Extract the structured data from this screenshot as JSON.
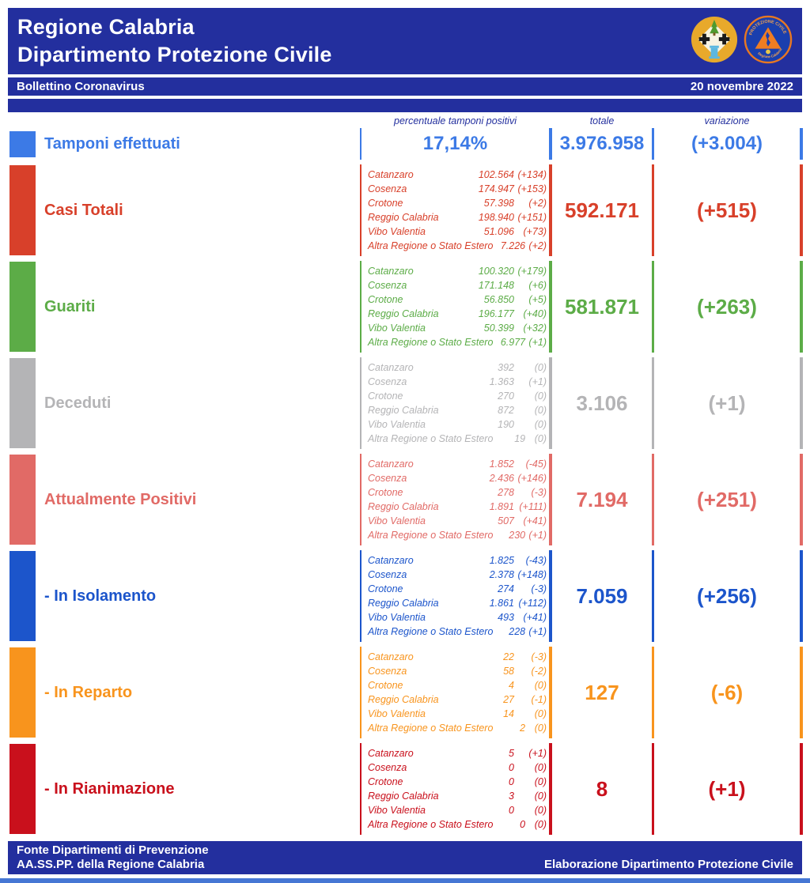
{
  "header": {
    "title_line1": "Regione Calabria",
    "title_line2": "Dipartimento Protezione Civile",
    "bulletin_label": "Bollettino Coronavirus",
    "date": "20 novembre 2022",
    "logos": [
      "regione-calabria-coat-of-arms",
      "protezione-civile-emblem"
    ]
  },
  "theme": {
    "header_bg": "#232f9e",
    "bottom_strip": "#4677d4"
  },
  "columns": {
    "percent_label": "percentuale tamponi positivi",
    "total_label": "totale",
    "variation_label": "variazione"
  },
  "tamponi": {
    "label": "Tamponi effettuati",
    "percent": "17,14%",
    "total": "3.976.958",
    "variation": "(+3.004)",
    "color": "#3c7ae6"
  },
  "sections": [
    {
      "label": "Casi Totali",
      "color": "#d8402a",
      "total": "592.171",
      "variation": "(+515)",
      "rows": [
        {
          "name": "Catanzaro",
          "value": "102.564",
          "delta": "(+134)"
        },
        {
          "name": "Cosenza",
          "value": "174.947",
          "delta": "(+153)"
        },
        {
          "name": "Crotone",
          "value": "57.398",
          "delta": "(+2)"
        },
        {
          "name": "Reggio Calabria",
          "value": "198.940",
          "delta": "(+151)"
        },
        {
          "name": "Vibo Valentia",
          "value": "51.096",
          "delta": "(+73)"
        },
        {
          "name": "Altra Regione o Stato Estero",
          "value": "7.226",
          "delta": "(+2)"
        }
      ]
    },
    {
      "label": "Guariti",
      "color": "#5cac47",
      "total": "581.871",
      "variation": "(+263)",
      "rows": [
        {
          "name": "Catanzaro",
          "value": "100.320",
          "delta": "(+179)"
        },
        {
          "name": "Cosenza",
          "value": "171.148",
          "delta": "(+6)"
        },
        {
          "name": "Crotone",
          "value": "56.850",
          "delta": "(+5)"
        },
        {
          "name": "Reggio Calabria",
          "value": "196.177",
          "delta": "(+40)"
        },
        {
          "name": "Vibo Valentia",
          "value": "50.399",
          "delta": "(+32)"
        },
        {
          "name": "Altra Regione o Stato Estero",
          "value": "6.977",
          "delta": "(+1)"
        }
      ]
    },
    {
      "label": "Deceduti",
      "color": "#b4b4b6",
      "total": "3.106",
      "variation": "(+1)",
      "rows": [
        {
          "name": "Catanzaro",
          "value": "392",
          "delta": "(0)"
        },
        {
          "name": "Cosenza",
          "value": "1.363",
          "delta": "(+1)"
        },
        {
          "name": "Crotone",
          "value": "270",
          "delta": "(0)"
        },
        {
          "name": "Reggio Calabria",
          "value": "872",
          "delta": "(0)"
        },
        {
          "name": "Vibo Valentia",
          "value": "190",
          "delta": "(0)"
        },
        {
          "name": "Altra Regione o Stato Estero",
          "value": "19",
          "delta": "(0)"
        }
      ]
    },
    {
      "label": "Attualmente Positivi",
      "color": "#e16a66",
      "total": "7.194",
      "variation": "(+251)",
      "rows": [
        {
          "name": "Catanzaro",
          "value": "1.852",
          "delta": "(-45)"
        },
        {
          "name": "Cosenza",
          "value": "2.436",
          "delta": "(+146)"
        },
        {
          "name": "Crotone",
          "value": "278",
          "delta": "(-3)"
        },
        {
          "name": "Reggio Calabria",
          "value": "1.891",
          "delta": "(+111)"
        },
        {
          "name": "Vibo Valentia",
          "value": "507",
          "delta": "(+41)"
        },
        {
          "name": "Altra Regione o Stato Estero",
          "value": "230",
          "delta": "(+1)"
        }
      ]
    },
    {
      "label": "- In Isolamento",
      "color": "#1c55cb",
      "total": "7.059",
      "variation": "(+256)",
      "rows": [
        {
          "name": "Catanzaro",
          "value": "1.825",
          "delta": "(-43)"
        },
        {
          "name": "Cosenza",
          "value": "2.378",
          "delta": "(+148)"
        },
        {
          "name": "Crotone",
          "value": "274",
          "delta": "(-3)"
        },
        {
          "name": "Reggio Calabria",
          "value": "1.861",
          "delta": "(+112)"
        },
        {
          "name": "Vibo Valentia",
          "value": "493",
          "delta": "(+41)"
        },
        {
          "name": "Altra Regione o Stato Estero",
          "value": "228",
          "delta": "(+1)"
        }
      ]
    },
    {
      "label": "- In Reparto",
      "color": "#f8941d",
      "total": "127",
      "variation": "(-6)",
      "rows": [
        {
          "name": "Catanzaro",
          "value": "22",
          "delta": "(-3)"
        },
        {
          "name": "Cosenza",
          "value": "58",
          "delta": "(-2)"
        },
        {
          "name": "Crotone",
          "value": "4",
          "delta": "(0)"
        },
        {
          "name": "Reggio Calabria",
          "value": "27",
          "delta": "(-1)"
        },
        {
          "name": "Vibo Valentia",
          "value": "14",
          "delta": "(0)"
        },
        {
          "name": "Altra Regione o Stato Estero",
          "value": "2",
          "delta": "(0)"
        }
      ]
    },
    {
      "label": "- In Rianimazione",
      "color": "#c9101c",
      "total": "8",
      "variation": "(+1)",
      "rows": [
        {
          "name": "Catanzaro",
          "value": "5",
          "delta": "(+1)"
        },
        {
          "name": "Cosenza",
          "value": "0",
          "delta": "(0)"
        },
        {
          "name": "Crotone",
          "value": "0",
          "delta": "(0)"
        },
        {
          "name": "Reggio Calabria",
          "value": "3",
          "delta": "(0)"
        },
        {
          "name": "Vibo Valentia",
          "value": "0",
          "delta": "(0)"
        },
        {
          "name": "Altra Regione o Stato Estero",
          "value": "0",
          "delta": "(0)"
        }
      ]
    }
  ],
  "footer": {
    "line1": "Fonte Dipartimenti di Prevenzione",
    "line2_left": "AA.SS.PP.  della Regione Calabria",
    "line2_right": "Elaborazione Dipartimento Protezione Civile"
  }
}
